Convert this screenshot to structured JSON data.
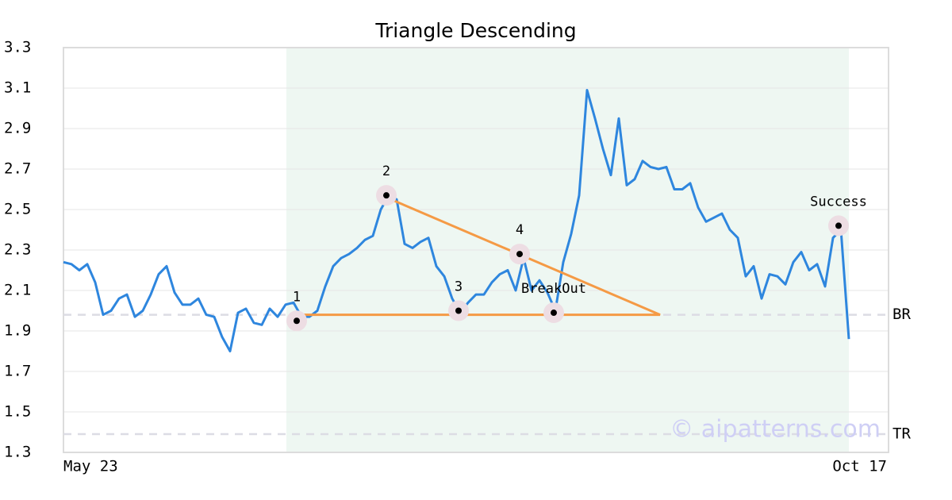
{
  "chart_data": {
    "type": "line",
    "title": "Triangle Descending",
    "categories": [
      "May 23",
      null,
      null,
      null,
      null,
      null,
      null,
      null,
      null,
      null,
      null,
      null,
      null,
      null,
      null,
      null,
      null,
      null,
      null,
      null,
      null,
      null,
      null,
      null,
      null,
      null,
      null,
      null,
      null,
      null,
      null,
      null,
      null,
      null,
      null,
      null,
      null,
      null,
      null,
      null,
      null,
      null,
      null,
      null,
      null,
      null,
      null,
      null,
      null,
      null,
      null,
      null,
      null,
      null,
      null,
      null,
      null,
      null,
      null,
      null,
      null,
      null,
      null,
      null,
      null,
      null,
      null,
      null,
      null,
      null,
      null,
      null,
      null,
      null,
      null,
      null,
      null,
      null,
      null,
      null,
      null,
      null,
      null,
      null,
      null,
      null,
      null,
      null,
      null,
      null,
      null,
      null,
      null,
      null,
      null,
      null,
      null,
      null,
      null,
      "Oct 17"
    ],
    "series": [
      {
        "color": "#2e86de",
        "values": [
          2.24,
          2.23,
          2.2,
          2.23,
          2.14,
          1.98,
          2.0,
          2.06,
          2.08,
          1.97,
          2.0,
          2.08,
          2.18,
          2.22,
          2.09,
          2.03,
          2.03,
          2.06,
          1.98,
          1.97,
          1.87,
          1.8,
          1.99,
          2.01,
          1.94,
          1.93,
          2.01,
          1.97,
          2.03,
          2.04,
          1.97,
          1.97,
          2.0,
          2.12,
          2.22,
          2.26,
          2.28,
          2.31,
          2.35,
          2.37,
          2.5,
          2.57,
          2.55,
          2.33,
          2.31,
          2.34,
          2.36,
          2.22,
          2.17,
          2.06,
          1.99,
          2.04,
          2.08,
          2.08,
          2.14,
          2.18,
          2.2,
          2.1,
          2.26,
          2.1,
          2.15,
          2.09,
          2.0,
          2.24,
          2.38,
          2.57,
          3.09,
          2.95,
          2.8,
          2.67,
          2.95,
          2.62,
          2.65,
          2.74,
          2.71,
          2.7,
          2.71,
          2.6,
          2.6,
          2.63,
          2.51,
          2.44,
          2.46,
          2.48,
          2.4,
          2.36,
          2.17,
          2.22,
          2.06,
          2.18,
          2.17,
          2.13,
          2.24,
          2.29,
          2.2,
          2.23,
          2.12,
          2.36,
          2.4,
          1.86
        ]
      }
    ],
    "ylim": [
      1.3,
      3.3
    ],
    "yticks": [
      1.3,
      1.5,
      1.7,
      1.9,
      2.1,
      2.3,
      2.5,
      2.7,
      2.9,
      3.1,
      3.3
    ],
    "grid": true,
    "shade": [
      28.1,
      99
    ],
    "shade_color": "#eef7f2",
    "triangle": {
      "color": "#f59a45",
      "x": [
        29.4,
        75.2,
        40.7
      ],
      "y": [
        1.98,
        1.98,
        2.56
      ]
    },
    "markers": [
      {
        "label": "1",
        "x": 29.4,
        "y": 1.95
      },
      {
        "label": "2",
        "x": 40.7,
        "y": 2.57
      },
      {
        "label": "3",
        "x": 49.8,
        "y": 2.0
      },
      {
        "label": "4",
        "x": 57.5,
        "y": 2.28
      },
      {
        "label": "BreakOut",
        "x": 61.8,
        "y": 1.99
      },
      {
        "label": "Success",
        "x": 97.7,
        "y": 2.42
      }
    ],
    "hlines": [
      {
        "label": "BR",
        "value": 1.98
      },
      {
        "label": "TR",
        "value": 1.39
      }
    ],
    "watermark": "© aipatterns.com"
  }
}
